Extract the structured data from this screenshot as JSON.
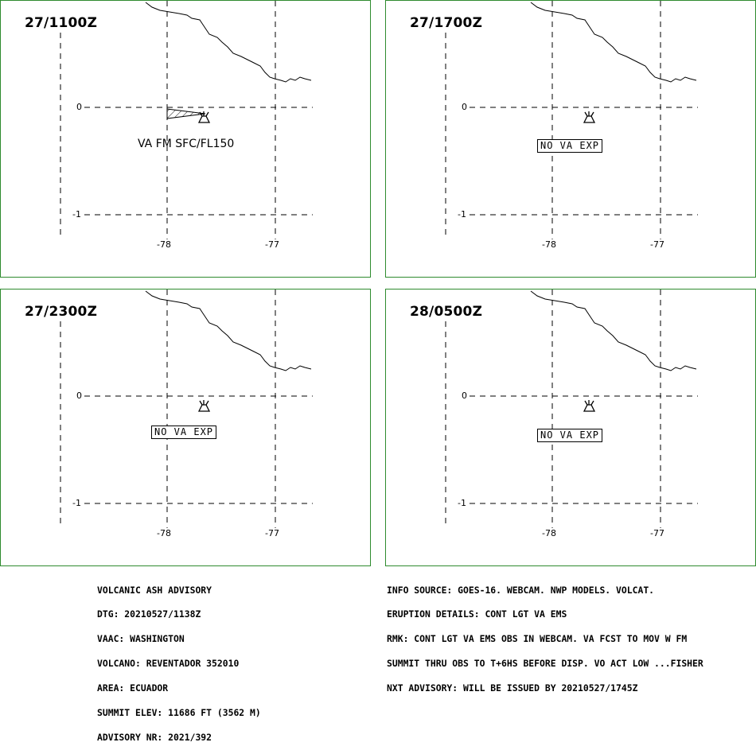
{
  "panels": [
    {
      "time": "27/1100Z",
      "lat_labels": [
        "0",
        "-1"
      ],
      "lon_labels": [
        "-78",
        "-77"
      ],
      "forecast": "VA FM SFC/FL150",
      "ash_area": true
    },
    {
      "time": "27/1700Z",
      "lat_labels": [
        "0",
        "-1"
      ],
      "lon_labels": [
        "-78",
        "-77"
      ],
      "forecast": "NO VA EXP",
      "ash_area": false
    },
    {
      "time": "27/2300Z",
      "lat_labels": [
        "0",
        "-1"
      ],
      "lon_labels": [
        "-78",
        "-77"
      ],
      "forecast": "NO VA EXP",
      "ash_area": false
    },
    {
      "time": "28/0500Z",
      "lat_labels": [
        "0",
        "-1"
      ],
      "lon_labels": [
        "-78",
        "-77"
      ],
      "forecast": "NO VA EXP",
      "ash_area": false
    }
  ],
  "advisory": {
    "title": "VOLCANIC ASH ADVISORY",
    "dtg": "DTG: 20210527/1138Z",
    "vaac": "VAAC: WASHINGTON",
    "volcano": "VOLCANO: REVENTADOR 352010",
    "area": "AREA: ECUADOR",
    "summit_elev": "SUMMIT ELEV: 11686 FT (3562 M)",
    "advisory_nr": "ADVISORY NR: 2021/392"
  },
  "details": {
    "info_source": "INFO SOURCE: GOES-16. WEBCAM. NWP MODELS. VOLCAT.",
    "eruption_details": "ERUPTION DETAILS: CONT LGT VA EMS",
    "rmk_line1": "RMK: CONT LGT VA EMS OBS IN WEBCAM. VA FCST TO MOV W FM",
    "rmk_line2": "SUMMIT THRU OBS TO T+6HS BEFORE DISP. VO ACT LOW ...FISHER",
    "nxt_advisory": "NXT ADVISORY: WILL BE ISSUED BY 20210527/1745Z"
  },
  "colors": {
    "panel_border": "#2e8b2e",
    "lines": "#000000"
  }
}
